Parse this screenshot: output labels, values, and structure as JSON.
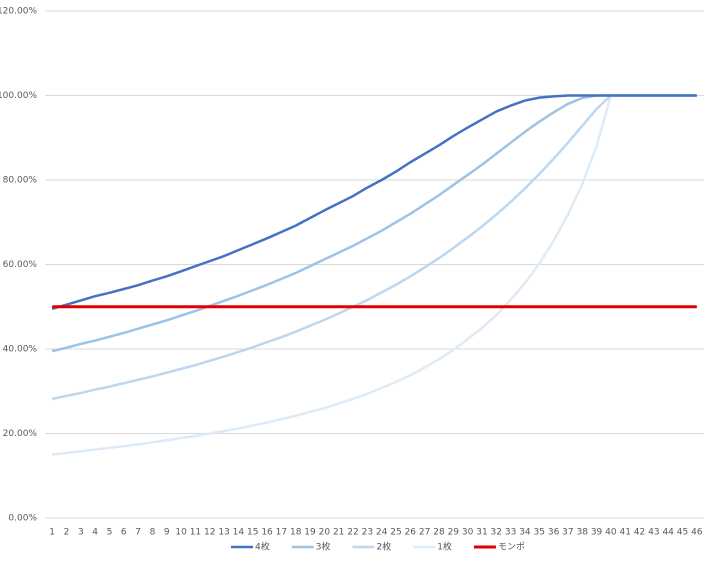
{
  "chart_data": {
    "type": "line",
    "categories": [
      "1",
      "2",
      "3",
      "4",
      "5",
      "6",
      "7",
      "8",
      "9",
      "10",
      "11",
      "12",
      "13",
      "14",
      "15",
      "16",
      "17",
      "18",
      "19",
      "20",
      "21",
      "22",
      "23",
      "24",
      "25",
      "26",
      "27",
      "28",
      "29",
      "30",
      "31",
      "32",
      "33",
      "34",
      "35",
      "36",
      "37",
      "38",
      "39",
      "40",
      "41",
      "42",
      "43",
      "44",
      "45",
      "46"
    ],
    "series": [
      {
        "name": "4枚",
        "color": "#4472c4",
        "values": [
          49.5,
          50.5,
          51.5,
          52.5,
          53.3,
          54.2,
          55.1,
          56.2,
          57.2,
          58.4,
          59.6,
          60.8,
          62,
          63.4,
          64.8,
          66.2,
          67.7,
          69.2,
          71,
          72.8,
          74.5,
          76.2,
          78.2,
          80,
          82,
          84.2,
          86.2,
          88.2,
          90.4,
          92.4,
          94.3,
          96.2,
          97.6,
          98.8,
          99.5,
          99.8,
          100,
          100,
          100,
          100,
          100,
          100,
          100,
          100,
          100,
          100
        ]
      },
      {
        "name": "3枚",
        "color": "#9dc3e6",
        "values": [
          39.5,
          40.3,
          41.2,
          42,
          42.9,
          43.8,
          44.8,
          45.8,
          46.8,
          47.9,
          49,
          50.2,
          51.4,
          52.6,
          53.9,
          55.2,
          56.6,
          58,
          59.6,
          61.2,
          62.8,
          64.4,
          66.2,
          68,
          70,
          72,
          74.2,
          76.4,
          78.8,
          81.2,
          83.6,
          86.2,
          88.8,
          91.4,
          93.8,
          96,
          98,
          99.4,
          100,
          100,
          100,
          100,
          100,
          100,
          100,
          100
        ]
      },
      {
        "name": "2枚",
        "color": "#bdd7ee",
        "values": [
          28.2,
          28.9,
          29.6,
          30.4,
          31.1,
          31.9,
          32.7,
          33.5,
          34.4,
          35.3,
          36.2,
          37.2,
          38.2,
          39.3,
          40.4,
          41.6,
          42.8,
          44.1,
          45.5,
          46.9,
          48.4,
          50,
          51.6,
          53.4,
          55.2,
          57.2,
          59.3,
          61.5,
          63.9,
          66.4,
          69,
          71.8,
          74.8,
          78,
          81.4,
          85,
          88.8,
          92.8,
          96.8,
          100,
          100,
          100,
          100,
          100,
          100,
          100
        ]
      },
      {
        "name": "1枚",
        "color": "#deebf7",
        "values": [
          15,
          15.4,
          15.8,
          16.2,
          16.6,
          17,
          17.4,
          17.9,
          18.4,
          18.9,
          19.4,
          20,
          20.6,
          21.2,
          21.9,
          22.6,
          23.4,
          24.2,
          25.1,
          26,
          27.1,
          28.2,
          29.4,
          30.8,
          32.2,
          33.8,
          35.6,
          37.6,
          39.8,
          42.3,
          45,
          48,
          51.6,
          55.6,
          60.2,
          65.6,
          71.8,
          79,
          88,
          100,
          100,
          100,
          100,
          100,
          100,
          100
        ]
      },
      {
        "name": "モンポ",
        "color": "#e00000",
        "values": [
          50,
          50,
          50,
          50,
          50,
          50,
          50,
          50,
          50,
          50,
          50,
          50,
          50,
          50,
          50,
          50,
          50,
          50,
          50,
          50,
          50,
          50,
          50,
          50,
          50,
          50,
          50,
          50,
          50,
          50,
          50,
          50,
          50,
          50,
          50,
          50,
          50,
          50,
          50,
          50,
          50,
          50,
          50,
          50,
          50,
          50
        ]
      }
    ],
    "ylim": [
      0,
      120
    ],
    "yticks": [
      {
        "value": 0,
        "label": "0.00%"
      },
      {
        "value": 20,
        "label": "20.00%"
      },
      {
        "value": 40,
        "label": "40.00%"
      },
      {
        "value": 60,
        "label": "60.00%"
      },
      {
        "value": 80,
        "label": "80.00%"
      },
      {
        "value": 100,
        "label": "100.00%"
      },
      {
        "value": 120,
        "label": "120.00%"
      }
    ],
    "grid": true,
    "legend": "bottom"
  }
}
